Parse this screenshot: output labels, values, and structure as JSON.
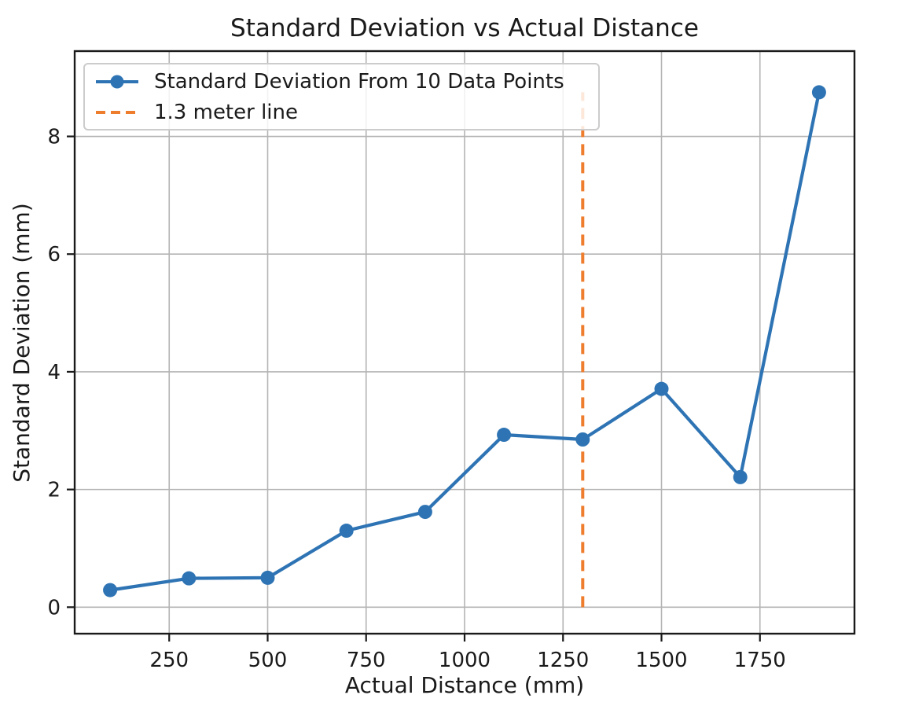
{
  "chart_data": {
    "type": "line",
    "title": "Standard Deviation vs Actual Distance",
    "xlabel": "Actual Distance (mm)",
    "ylabel": "Standard Deviation (mm)",
    "xlim": [
      10,
      1990
    ],
    "ylim": [
      -0.45,
      9.45
    ],
    "x_ticks": [
      250,
      500,
      750,
      1000,
      1250,
      1500,
      1750
    ],
    "y_ticks": [
      0,
      2,
      4,
      6,
      8
    ],
    "grid": true,
    "legend_position": "upper-left",
    "series": [
      {
        "name": "Standard Deviation From 10 Data Points",
        "style": "solid-line-with-circle-markers",
        "color": "#2e74b4",
        "x": [
          100,
          300,
          500,
          700,
          900,
          1100,
          1300,
          1500,
          1700,
          1900
        ],
        "y": [
          0.29,
          0.49,
          0.5,
          1.3,
          1.62,
          2.93,
          2.85,
          3.71,
          2.21,
          8.75
        ]
      },
      {
        "name": "1.3 meter line",
        "style": "dashed-vertical-line",
        "color": "#ee7d2e",
        "x": 1300,
        "y_from": 0,
        "y_to": 8.75
      }
    ]
  },
  "colors": {
    "series_blue": "#2e74b4",
    "vline_orange": "#ee7d2e",
    "grid": "#b4b4b4",
    "spine": "#1a1a1a",
    "text": "#1a1a1a",
    "legend_border": "#cccccc"
  }
}
